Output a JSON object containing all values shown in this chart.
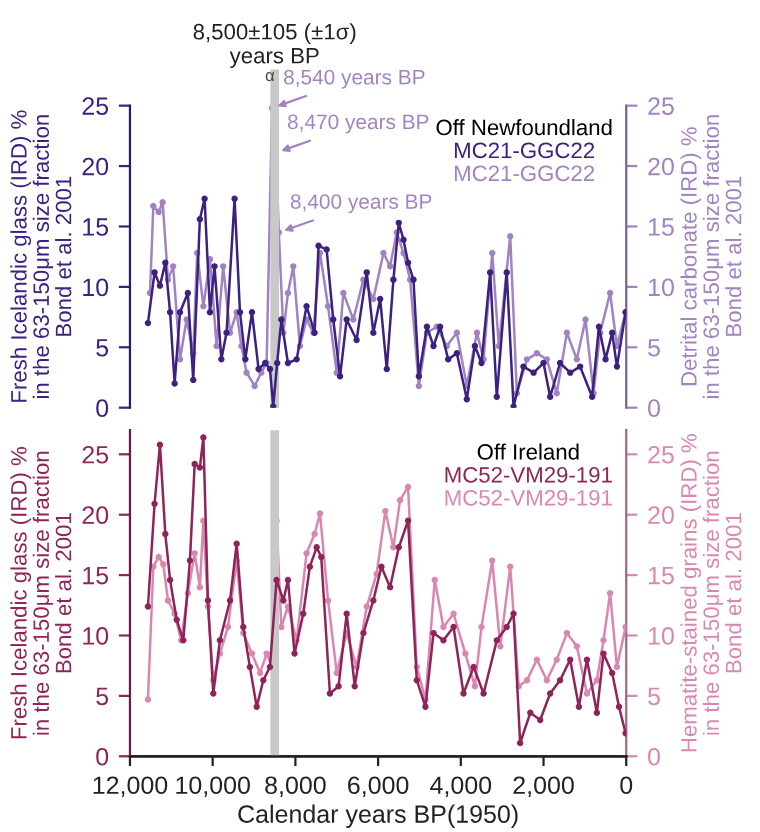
{
  "chart_data": [
    {
      "type": "line",
      "ylabel": "Fresh Icelandic glass (IRD) %\nin the 63-150μm size fraction\nBond et al. 2001",
      "y2label": "Detrital carbonate (IRD) %\nin the 63-150μm size fraction\nBond et al. 2001",
      "legend_title": "Off Newfoundland",
      "legend": "top right",
      "marker": "circle",
      "line_style": "solid",
      "grid": false,
      "tick_labels": "y",
      "xlim": [
        12000,
        0
      ],
      "ylim": [
        0,
        25
      ],
      "yticks": [
        0,
        5,
        10,
        15,
        20,
        25
      ],
      "y2lim": [
        0,
        25
      ],
      "y2ticks": [
        0,
        5,
        10,
        15,
        20,
        25
      ],
      "bands": [
        {
          "axis": "x",
          "from": 8605,
          "to": 8395,
          "label": "8,500±105 (±1σ)\nyears BP",
          "color": "#c8c8c8"
        }
      ],
      "annotations": [
        "α",
        {
          "text": "8,540 years BP",
          "x": 8565,
          "y": 24.8
        },
        {
          "text": "8,470 years BP",
          "x": 8470,
          "y": 21.1
        },
        {
          "text": "8,400 years BP",
          "x": 8400,
          "y": 14.5
        }
      ],
      "series": [
        {
          "name": "MC21-GGC22",
          "color": "#3d2180",
          "x": [
            11565,
            11405,
            11275,
            11145,
            11030,
            10920,
            10790,
            10600,
            10470,
            10310,
            10195,
            10065,
            9955,
            9790,
            9665,
            9470,
            9340,
            9210,
            9050,
            8890,
            8730,
            8615,
            8535,
            8440,
            8340,
            8180,
            7970,
            7730,
            7535,
            7440,
            7245,
            7085,
            6920,
            6760,
            6520,
            6275,
            6115,
            5950,
            5790,
            5630,
            5500,
            5385,
            5275,
            5145,
            5015,
            4820,
            4660,
            4500,
            4305,
            4095,
            3855,
            3660,
            3500,
            3290,
            3130,
            2890,
            2725,
            2485,
            2240,
            2000,
            1840,
            1600,
            1355,
            1115,
            825,
            660,
            500,
            340,
            225,
            15
          ],
          "values": [
            7.0,
            11.2,
            10.1,
            12.0,
            7.9,
            2.0,
            7.9,
            9.5,
            2.3,
            15.6,
            17.3,
            7.9,
            11.7,
            4.0,
            6.2,
            17.3,
            7.9,
            4.0,
            7.9,
            3.2,
            3.7,
            3.2,
            0.1,
            3.7,
            7.3,
            3.7,
            4.0,
            8.4,
            6.2,
            13.4,
            13.1,
            7.3,
            2.6,
            7.3,
            5.6,
            11.2,
            6.2,
            9.0,
            3.2,
            10.6,
            15.3,
            13.9,
            12.0,
            10.6,
            2.6,
            6.7,
            5.1,
            6.7,
            4.0,
            4.5,
            0.7,
            5.1,
            3.7,
            11.2,
            0.9,
            11.2,
            0.1,
            3.4,
            2.9,
            3.7,
            0.9,
            3.7,
            2.9,
            3.4,
            0.9,
            6.7,
            4.0,
            6.2,
            3.4,
            7.9
          ]
        },
        {
          "name": "MC21-GGC22",
          "color": "#a283c2",
          "axis": "y2",
          "x": [
            11515,
            11435,
            11305,
            11210,
            11080,
            10955,
            10790,
            10630,
            10470,
            10375,
            10225,
            10065,
            9905,
            9745,
            9580,
            9420,
            9305,
            9180,
            8985,
            8825,
            8695,
            8565,
            8470,
            8400,
            8290,
            8180,
            8050,
            7890,
            7730,
            7565,
            7405,
            7210,
            7000,
            6840,
            6600,
            6355,
            6115,
            5870,
            5710,
            5550,
            5385,
            5225,
            5015,
            4820,
            4580,
            4340,
            4095,
            3855,
            3610,
            3450,
            3240,
            3080,
            2805,
            2645,
            2400,
            2160,
            1920,
            1680,
            1435,
            1195,
            985,
            790,
            630,
            390,
            225,
            15
          ],
          "values": [
            9.5,
            16.7,
            16.2,
            17.0,
            10.6,
            11.7,
            4.0,
            7.3,
            4.5,
            12.8,
            8.4,
            12.3,
            5.1,
            11.7,
            6.2,
            7.9,
            5.1,
            2.9,
            1.8,
            2.9,
            3.7,
            24.8,
            21.1,
            14.5,
            6.2,
            9.5,
            11.7,
            5.1,
            7.3,
            6.2,
            12.8,
            8.4,
            2.9,
            9.5,
            7.3,
            10.6,
            9.0,
            12.8,
            11.7,
            14.5,
            12.8,
            10.6,
            1.8,
            6.2,
            6.7,
            5.1,
            6.2,
            1.8,
            6.2,
            4.0,
            12.8,
            5.1,
            14.2,
            1.2,
            4.0,
            4.5,
            4.0,
            1.2,
            6.2,
            4.0,
            7.3,
            1.2,
            6.2,
            9.5,
            5.1,
            7.9
          ]
        }
      ]
    },
    {
      "type": "line",
      "xlabel": "Calendar years BP(1950)",
      "ylabel": "Fresh Icelandic glass (IRD) %\nin the 63-150μm size fraction\nBond et al. 2001",
      "y2label": "Hematite-stained grains (IRD) %\nin the 63-150μm size fraction\nBond et al. 2001",
      "legend_title": "Off Ireland",
      "legend": "top right",
      "marker": "circle",
      "line_style": "solid",
      "grid": false,
      "xlim": [
        12000,
        0
      ],
      "xticks": [
        {
          "value": 12000,
          "label": "12,000"
        },
        {
          "value": 10000,
          "label": "10,000"
        },
        {
          "value": 8000,
          "label": "8,000"
        },
        {
          "value": 6000,
          "label": "6,000"
        },
        {
          "value": 4000,
          "label": "4,000"
        },
        {
          "value": 2000,
          "label": "2,000"
        },
        0
      ],
      "ylim": [
        0,
        27
      ],
      "yticks": [
        0,
        5,
        10,
        15,
        20,
        25
      ],
      "y2lim": [
        0,
        27
      ],
      "y2ticks": [
        0,
        5,
        10,
        15,
        20,
        25
      ],
      "bands": [
        {
          "axis": "x",
          "from": 8605,
          "to": 8395,
          "color": "#c8c8c8"
        }
      ],
      "series": [
        {
          "name": "MC52-VM29-191",
          "color": "#8e2459",
          "x": [
            11565,
            11405,
            11275,
            11145,
            11030,
            10870,
            10710,
            10550,
            10435,
            10310,
            10225,
            10115,
            9985,
            9825,
            9580,
            9420,
            9260,
            9100,
            8935,
            8775,
            8615,
            8455,
            8290,
            8180,
            8020,
            7810,
            7650,
            7485,
            7375,
            7165,
            6955,
            6760,
            6565,
            6355,
            6115,
            5920,
            5710,
            5500,
            5275,
            5065,
            4855,
            4660,
            4420,
            4175,
            3935,
            3690,
            3450,
            3130,
            2890,
            2725,
            2565,
            2320,
            2080,
            1840,
            1600,
            1355,
            1145,
            950,
            710,
            550,
            340,
            175,
            15
          ],
          "values": [
            12.4,
            20.9,
            25.8,
            18.4,
            14.6,
            11.3,
            9.6,
            16.2,
            24.2,
            23.9,
            26.4,
            12.9,
            5.2,
            9.6,
            12.9,
            17.6,
            10.7,
            7.4,
            4.1,
            6.3,
            7.4,
            14.6,
            12.9,
            14.6,
            8.5,
            11.8,
            15.7,
            17.3,
            16.5,
            5.2,
            5.8,
            11.8,
            5.8,
            10.2,
            12.9,
            15.7,
            14.0,
            17.3,
            19.5,
            6.3,
            4.1,
            10.2,
            9.6,
            10.7,
            5.2,
            7.4,
            5.2,
            9.6,
            10.7,
            11.8,
            1.1,
            3.6,
            3.0,
            5.2,
            6.3,
            8.0,
            4.1,
            8.0,
            3.6,
            8.5,
            6.9,
            4.1,
            1.9
          ]
        },
        {
          "name": "MC52-VM29-191",
          "color": "#d987b0",
          "axis": "y2",
          "x": [
            11565,
            11435,
            11305,
            11195,
            11080,
            10920,
            10760,
            10600,
            10435,
            10310,
            10225,
            10115,
            9985,
            9825,
            9630,
            9420,
            9260,
            9050,
            8855,
            8695,
            8565,
            8455,
            8340,
            8180,
            7970,
            7730,
            7535,
            7405,
            7210,
            7000,
            6760,
            6520,
            6275,
            6035,
            5825,
            5630,
            5470,
            5275,
            5065,
            4855,
            4630,
            4420,
            4175,
            3890,
            3660,
            3500,
            3240,
            3045,
            2805,
            2600,
            2400,
            2160,
            1920,
            1680,
            1435,
            1195,
            950,
            710,
            550,
            390,
            225,
            15
          ],
          "values": [
            4.7,
            15.7,
            16.5,
            15.9,
            12.9,
            11.8,
            9.6,
            13.5,
            16.8,
            14.0,
            19.5,
            12.4,
            6.3,
            8.5,
            10.7,
            16.2,
            10.2,
            8.5,
            6.9,
            8.5,
            7.4,
            19.5,
            10.7,
            12.4,
            9.6,
            16.8,
            18.4,
            20.1,
            12.9,
            6.9,
            10.2,
            7.4,
            12.4,
            15.1,
            20.3,
            17.3,
            21.2,
            22.3,
            7.4,
            4.7,
            14.6,
            10.7,
            11.8,
            8.5,
            5.8,
            10.7,
            16.2,
            9.1,
            15.7,
            5.8,
            6.3,
            8.0,
            6.3,
            8.0,
            10.2,
            9.1,
            5.2,
            6.3,
            9.6,
            13.5,
            7.4,
            10.7
          ]
        }
      ]
    }
  ]
}
